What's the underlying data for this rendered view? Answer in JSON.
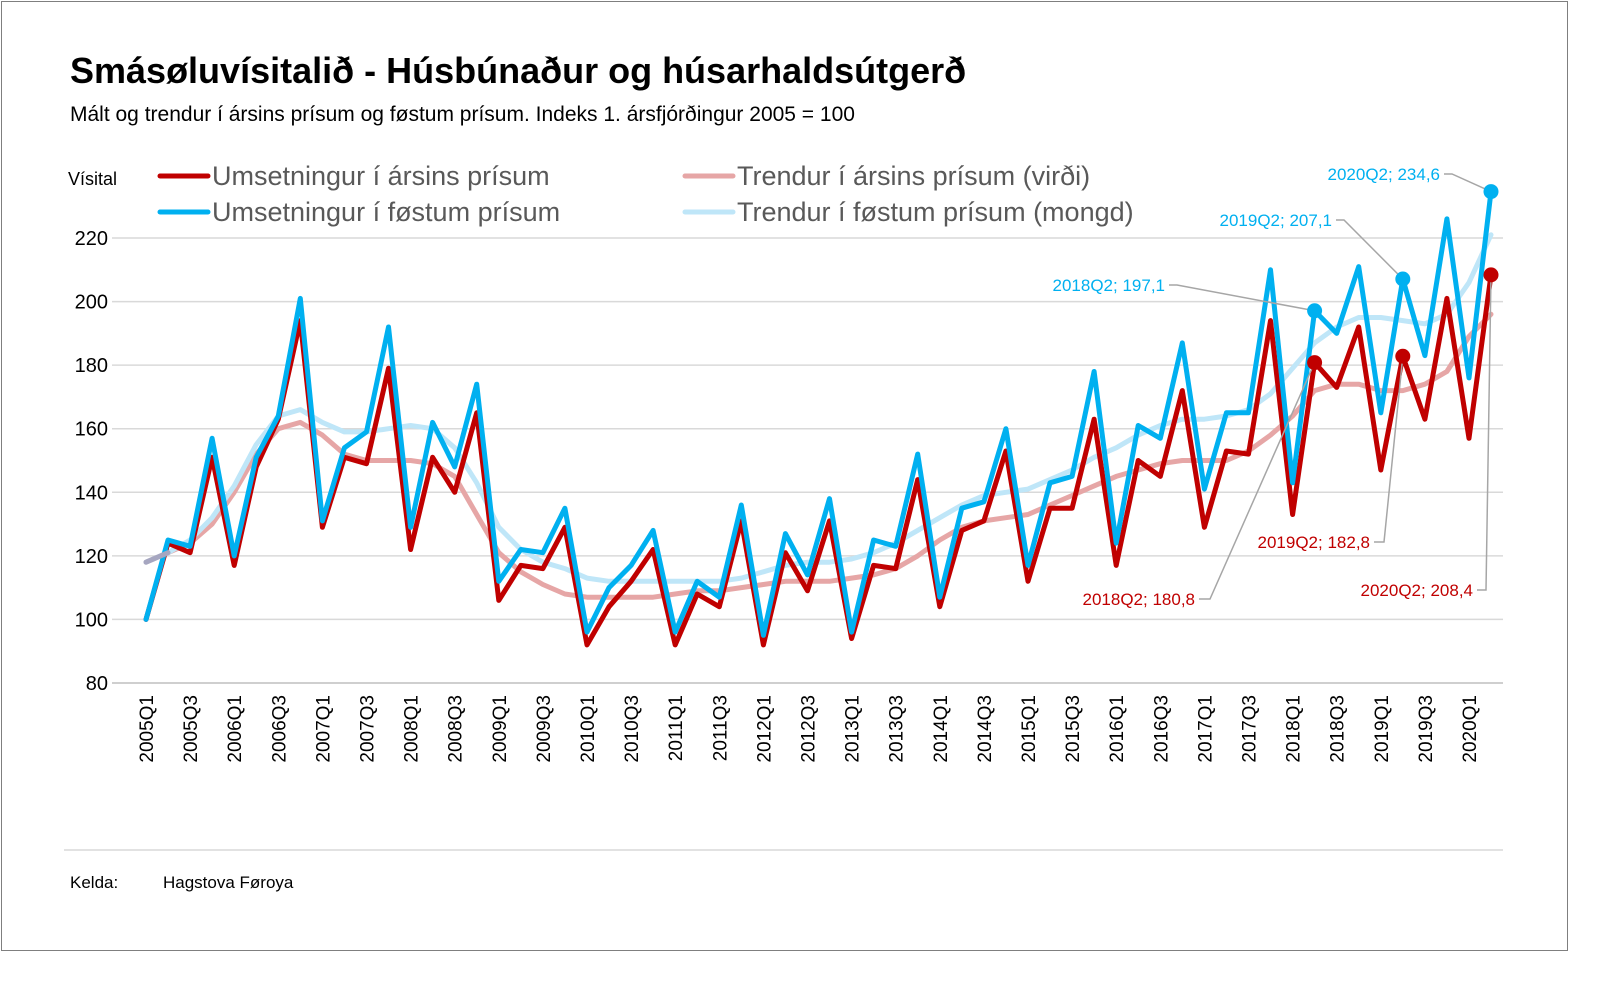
{
  "title": "Smásøluvísitalið - Húsbúnaður og húsarhaldsútgerð",
  "subtitle": "Mált og trendur í ársins prísum og føstum prísum. Indeks 1. ársfjórðingur 2005 = 100",
  "source": {
    "label": "Kelda:",
    "value": "Hagstova Føroya"
  },
  "chart_data": {
    "type": "line",
    "ylabel": "Vísital",
    "ylim": [
      80,
      220
    ],
    "yticks": [
      80,
      100,
      120,
      140,
      160,
      180,
      200,
      220
    ],
    "grid": true,
    "legend_position": "top",
    "x": [
      "2005Q1",
      "2005Q2",
      "2005Q3",
      "2005Q4",
      "2006Q1",
      "2006Q2",
      "2006Q3",
      "2006Q4",
      "2007Q1",
      "2007Q2",
      "2007Q3",
      "2007Q4",
      "2008Q1",
      "2008Q2",
      "2008Q3",
      "2008Q4",
      "2009Q1",
      "2009Q2",
      "2009Q3",
      "2009Q4",
      "2010Q1",
      "2010Q2",
      "2010Q3",
      "2010Q4",
      "2011Q1",
      "2011Q2",
      "2011Q3",
      "2011Q4",
      "2012Q1",
      "2012Q2",
      "2012Q3",
      "2012Q4",
      "2013Q1",
      "2013Q2",
      "2013Q3",
      "2013Q4",
      "2014Q1",
      "2014Q2",
      "2014Q3",
      "2014Q4",
      "2015Q1",
      "2015Q2",
      "2015Q3",
      "2015Q4",
      "2016Q1",
      "2016Q2",
      "2016Q3",
      "2016Q4",
      "2017Q1",
      "2017Q2",
      "2017Q3",
      "2017Q4",
      "2018Q1",
      "2018Q2",
      "2018Q3",
      "2018Q4",
      "2019Q1",
      "2019Q2",
      "2019Q3",
      "2019Q4",
      "2020Q1",
      "2020Q2"
    ],
    "xtick_labels": [
      "2005Q1",
      "2005Q3",
      "2006Q1",
      "2006Q3",
      "2007Q1",
      "2007Q3",
      "2008Q1",
      "2008Q3",
      "2009Q1",
      "2009Q3",
      "2010Q1",
      "2010Q3",
      "2011Q1",
      "2011Q3",
      "2012Q1",
      "2012Q3",
      "2013Q1",
      "2013Q3",
      "2014Q1",
      "2014Q3",
      "2015Q1",
      "2015Q3",
      "2016Q1",
      "2016Q3",
      "2017Q1",
      "2017Q3",
      "2018Q1",
      "2018Q3",
      "2019Q1",
      "2019Q3",
      "2020Q1"
    ],
    "series": [
      {
        "name": "Umsetningur í ársins prísum",
        "color": "#c00000",
        "width": 5,
        "values": [
          100,
          124,
          121,
          151,
          117,
          148,
          163,
          194,
          129,
          151,
          149,
          179,
          122,
          151,
          140,
          165,
          106,
          117,
          116,
          129,
          92,
          104,
          112,
          122,
          92,
          108,
          104,
          131,
          92,
          121,
          109,
          131,
          94,
          117,
          116,
          144,
          104,
          128,
          131,
          153,
          112,
          135,
          135,
          163,
          117,
          150,
          145,
          172,
          129,
          153,
          152,
          194,
          133,
          180.8,
          173,
          192,
          147,
          182.8,
          163,
          201,
          157,
          208.4
        ]
      },
      {
        "name": "Trendur í ársins prísum (virði)",
        "color": "#e6a6a6",
        "width": 5,
        "values": [
          118,
          121,
          124,
          130,
          140,
          152,
          160,
          162,
          158,
          152,
          150,
          150,
          150,
          149,
          145,
          133,
          121,
          115,
          111,
          108,
          107,
          107,
          107,
          107,
          108,
          109,
          109,
          110,
          111,
          112,
          112,
          112,
          113,
          114,
          116,
          120,
          125,
          129,
          131,
          132,
          133,
          136,
          139,
          142,
          145,
          147,
          149,
          150,
          150,
          150,
          153,
          158,
          164,
          172,
          174,
          174,
          172,
          172,
          174,
          178,
          189,
          196
        ]
      },
      {
        "name": "Umsetningur í føstum prísum",
        "color": "#00b0f0",
        "width": 5,
        "values": [
          100,
          125,
          123,
          157,
          120,
          151,
          164,
          201,
          131,
          154,
          159,
          192,
          129,
          162,
          148,
          174,
          112,
          122,
          121,
          135,
          96,
          110,
          117,
          128,
          96,
          112,
          107,
          136,
          95,
          127,
          114,
          138,
          96,
          125,
          123,
          152,
          107,
          135,
          137,
          160,
          117,
          143,
          145,
          178,
          124,
          161,
          157,
          187,
          141,
          165,
          165,
          210,
          143,
          197.1,
          190,
          211,
          165,
          207.1,
          183,
          226,
          176,
          234.6
        ]
      },
      {
        "name": "Trendur í føstum prísum (mongd)",
        "color": "#bfe6f8",
        "width": 5,
        "values": [
          118,
          121,
          125,
          132,
          142,
          155,
          164,
          166,
          162,
          159,
          159,
          160,
          161,
          160,
          154,
          143,
          129,
          122,
          118,
          116,
          113,
          112,
          112,
          112,
          112,
          112,
          112,
          113,
          115,
          117,
          118,
          118,
          119,
          121,
          124,
          128,
          132,
          136,
          139,
          140,
          141,
          144,
          147,
          151,
          154,
          158,
          161,
          163,
          163,
          164,
          166,
          171,
          179,
          187,
          192,
          195,
          195,
          194,
          193,
          196,
          206,
          221
        ]
      }
    ],
    "annotations": [
      {
        "text": "2020Q2; 234,6",
        "series": 2,
        "x": "2020Q2",
        "value": 234.6,
        "color": "#00b0f0"
      },
      {
        "text": "2019Q2; 207,1",
        "series": 2,
        "x": "2019Q2",
        "value": 207.1,
        "color": "#00b0f0"
      },
      {
        "text": "2018Q2; 197,1",
        "series": 2,
        "x": "2018Q2",
        "value": 197.1,
        "color": "#00b0f0"
      },
      {
        "text": "2019Q2; 182,8",
        "series": 0,
        "x": "2019Q2",
        "value": 182.8,
        "color": "#c00000"
      },
      {
        "text": "2018Q2; 180,8",
        "series": 0,
        "x": "2018Q2",
        "value": 180.8,
        "color": "#c00000"
      },
      {
        "text": "2020Q2; 208,4",
        "series": 0,
        "x": "2020Q2",
        "value": 208.4,
        "color": "#c00000"
      }
    ]
  }
}
